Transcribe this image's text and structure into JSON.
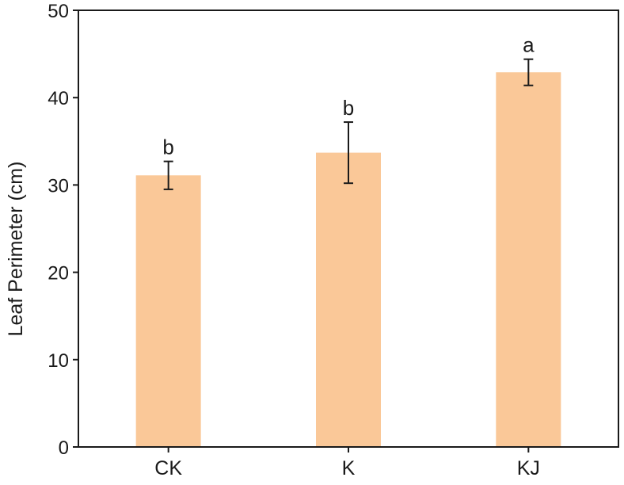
{
  "chart_data": {
    "type": "bar",
    "title": "",
    "xlabel": "",
    "ylabel": "Leaf Perimeter (cm)",
    "categories": [
      "CK",
      "K",
      "KJ"
    ],
    "values": [
      31.1,
      33.7,
      42.9
    ],
    "errors": [
      1.6,
      3.5,
      1.5
    ],
    "significance": [
      "b",
      "b",
      "a"
    ],
    "ylim": [
      0,
      50
    ],
    "yticks": [
      0,
      10,
      20,
      30,
      40,
      50
    ],
    "ytick_labels": [
      "0",
      "10",
      "20",
      "30",
      "40",
      "50"
    ],
    "bar_color": "#fac898",
    "axis_color": "#1a1a1a",
    "grid": false,
    "legend": "none"
  }
}
